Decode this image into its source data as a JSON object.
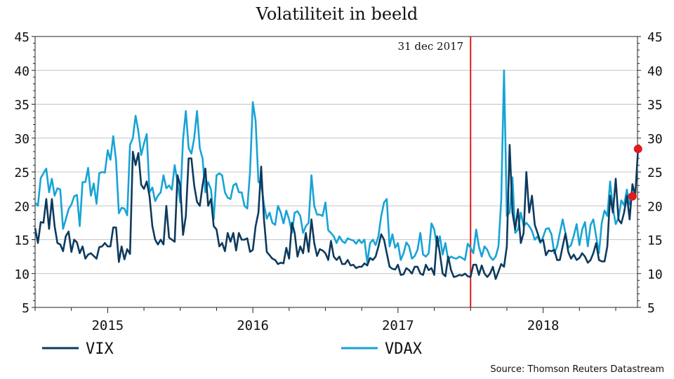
{
  "chart_data": {
    "type": "line",
    "title": "Volatiliteit in beeld",
    "source": "Source: Thomson Reuters Datastream",
    "annotation": "31 dec 2017",
    "annotation_x": 2017.5,
    "x_range": [
      2014.5,
      2018.65
    ],
    "ylim": [
      5,
      45
    ],
    "y_ticks": [
      5,
      10,
      15,
      20,
      25,
      30,
      35,
      40,
      45
    ],
    "x_labels": [
      "2015",
      "2016",
      "2017",
      "2018"
    ],
    "x_label_positions": [
      2015.0,
      2016.0,
      2017.0,
      2018.0
    ],
    "grid": true,
    "legend_placement": "bottom",
    "series": [
      {
        "name": "VIX",
        "color": "#0d3a5e",
        "x_start": 2014.5,
        "x_step": 0.01923,
        "values": [
          16.7,
          14.5,
          17.6,
          17.5,
          21,
          16.6,
          21,
          17,
          14.5,
          14.3,
          13.3,
          15.5,
          16.2,
          13.2,
          15,
          14.6,
          13,
          14,
          12.2,
          12.8,
          13,
          12.6,
          12.2,
          13.9,
          14,
          14.5,
          14,
          14,
          16.8,
          16.8,
          11.7,
          14,
          12.1,
          13.6,
          12.9,
          28,
          26,
          27.8,
          23.1,
          22.5,
          23.6,
          21.4,
          17,
          15,
          14.3,
          15,
          14.3,
          20,
          15.3,
          15,
          14.7,
          24.5,
          23,
          15.7,
          18.5,
          27,
          27,
          23,
          20.6,
          20,
          23,
          25.5,
          20,
          21,
          17,
          16.5,
          14,
          14.5,
          13.3,
          16,
          14.7,
          16,
          13.4,
          16,
          15,
          15,
          15.2,
          13.2,
          13.5,
          17,
          19,
          25.8,
          18,
          13.2,
          12.7,
          12.2,
          12,
          11.4,
          11.6,
          11.5,
          13.8,
          12.2,
          17.5,
          16,
          12.5,
          14,
          13,
          16,
          13.2,
          18,
          14.5,
          12.6,
          13.6,
          13.4,
          13,
          12,
          14.8,
          12.5,
          12,
          12.5,
          11.4,
          11.4,
          12,
          11.2,
          11.3,
          10.8,
          11,
          11,
          11.5,
          11.2,
          12.3,
          12,
          12.5,
          14,
          15.8,
          15,
          13,
          11,
          10.7,
          10.6,
          11.3,
          9.8,
          9.9,
          10.8,
          10.5,
          10,
          11,
          11,
          10,
          9.8,
          11.3,
          10.5,
          10.8,
          9.8,
          15.5,
          13,
          10,
          9.6,
          12.5,
          10.5,
          9.5,
          9.6,
          9.8,
          9.7,
          10,
          9.6,
          9.5,
          11.3,
          11.3,
          9.8,
          11.2,
          10,
          9.5,
          10,
          11,
          9.2,
          10.3,
          11.4,
          11,
          14,
          29,
          19,
          16.5,
          19.5,
          14.5,
          16,
          25,
          19,
          21.5,
          17.2,
          16,
          14.7,
          15,
          12.7,
          13.4,
          13.3,
          13.5,
          12,
          12,
          14,
          15.9,
          13.2,
          12.2,
          12.8,
          12,
          12.3,
          13,
          12.5,
          11.6,
          12,
          13,
          14.5,
          12,
          11.8,
          11.8,
          14,
          21.5,
          19,
          24,
          18,
          17.4,
          19,
          21.5,
          18,
          23.2,
          21.5,
          28.4
        ]
      },
      {
        "name": "VDAX",
        "color": "#17a3d6",
        "x_start": 2014.5,
        "x_step": 0.01923,
        "values": [
          20.5,
          20,
          24.1,
          24.8,
          25.5,
          22,
          24,
          21.5,
          22.6,
          22.4,
          16.6,
          18,
          19.5,
          20.2,
          21.4,
          21.6,
          17,
          23.5,
          23.5,
          25.6,
          21.5,
          23.3,
          20.3,
          24.8,
          25,
          24.9,
          28.2,
          26.8,
          30.3,
          26.7,
          18.9,
          19.7,
          19.6,
          18.6,
          29,
          30,
          33.3,
          31,
          27.5,
          29.2,
          30.6,
          22,
          22.7,
          20.7,
          21.5,
          22,
          24.5,
          22.6,
          23,
          22.4,
          26,
          23.5,
          20.5,
          29.8,
          34,
          28.5,
          27.7,
          30,
          34,
          28.5,
          27,
          22,
          23.5,
          22.4,
          18,
          24.5,
          24.8,
          24.5,
          22,
          21.2,
          21,
          23,
          23.3,
          22,
          22,
          20,
          19.6,
          25,
          35.3,
          32.5,
          23.5,
          23.3,
          20.2,
          18.1,
          19,
          17.5,
          17.2,
          20,
          19,
          17.4,
          19.3,
          18,
          16,
          19,
          19.2,
          18.5,
          16,
          17,
          17.5,
          24.5,
          20,
          18.7,
          18.7,
          18.5,
          20.5,
          16.4,
          16,
          15.5,
          14.5,
          15.5,
          14.8,
          14.5,
          15.2,
          15,
          14.9,
          14.4,
          15,
          14.5,
          15,
          11.6,
          14.5,
          15,
          14.2,
          15.5,
          18.5,
          20.5,
          21,
          14,
          15.8,
          13.8,
          14.5,
          12,
          13,
          14.6,
          14,
          12.2,
          12.6,
          13.5,
          16,
          12.8,
          12.5,
          13,
          17.4,
          16.5,
          14,
          15.5,
          12.8,
          14.5,
          12,
          12.5,
          12.3,
          12.2,
          12.5,
          12.3,
          12,
          14.4,
          13.8,
          13,
          16.5,
          14,
          12.5,
          14,
          13.5,
          12.5,
          12,
          12.5,
          14,
          20.8,
          40,
          18.5,
          19,
          24.2,
          16,
          16.5,
          19,
          17,
          17.5,
          17,
          16.3,
          15,
          15.5,
          14.5,
          15.4,
          16.6,
          16.7,
          15.8,
          13,
          14,
          16,
          18,
          16,
          13.8,
          14.2,
          15.6,
          17.3,
          14.2,
          16.5,
          17.6,
          14,
          17.2,
          18,
          15.5,
          13,
          17.5,
          19.3,
          18.5,
          23.6,
          19.6,
          17.3,
          18.2,
          20.8,
          20.1,
          22.4,
          20.2,
          21.4
        ]
      }
    ],
    "endpoint_color": "#e01b1b",
    "marker_line_color": "#e01b1b"
  }
}
